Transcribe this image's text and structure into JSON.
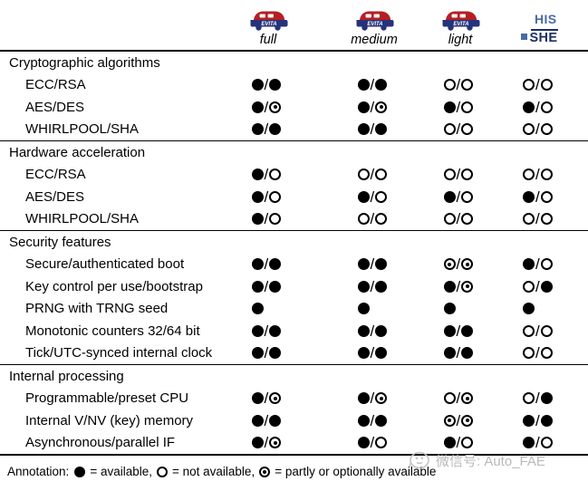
{
  "header": {
    "evita_logo_text": "EVITA",
    "columns": [
      {
        "id": "evita-full",
        "type": "evita",
        "label": "full"
      },
      {
        "id": "evita-medium",
        "type": "evita",
        "label": "medium"
      },
      {
        "id": "evita-light",
        "type": "evita",
        "label": "light"
      },
      {
        "id": "his-she",
        "type": "she",
        "logo_top": "HIS",
        "logo_bottom": "SHE"
      }
    ]
  },
  "symbols": {
    "F": "available",
    "O": "not available",
    "P": "partly or optionally available"
  },
  "sections": [
    {
      "title": "Cryptographic algorithms",
      "rows": [
        {
          "label": "ECC/RSA",
          "cells": [
            "F/F",
            "F/F",
            "O/O",
            "O/O"
          ]
        },
        {
          "label": "AES/DES",
          "cells": [
            "F/P",
            "F/P",
            "F/O",
            "F/O"
          ]
        },
        {
          "label": "WHIRLPOOL/SHA",
          "cells": [
            "F/F",
            "F/F",
            "O/O",
            "O/O"
          ]
        }
      ]
    },
    {
      "title": "Hardware acceleration",
      "rows": [
        {
          "label": "ECC/RSA",
          "cells": [
            "F/O",
            "O/O",
            "O/O",
            "O/O"
          ]
        },
        {
          "label": "AES/DES",
          "cells": [
            "F/O",
            "F/O",
            "F/O",
            "F/O"
          ]
        },
        {
          "label": "WHIRLPOOL/SHA",
          "cells": [
            "F/O",
            "O/O",
            "O/O",
            "O/O"
          ]
        }
      ]
    },
    {
      "title": "Security features",
      "rows": [
        {
          "label": "Secure/authenticated boot",
          "cells": [
            "F/F",
            "F/F",
            "P/P",
            "F/O"
          ]
        },
        {
          "label": "Key control per use/bootstrap",
          "cells": [
            "F/F",
            "F/F",
            "F/P",
            "O/F"
          ]
        },
        {
          "label": "PRNG with TRNG seed",
          "cells": [
            "F",
            "F",
            "F",
            "F"
          ]
        },
        {
          "label": "Monotonic counters 32/64 bit",
          "cells": [
            "F/F",
            "F/F",
            "F/F",
            "O/O"
          ]
        },
        {
          "label": "Tick/UTC-synced internal clock",
          "cells": [
            "F/F",
            "F/F",
            "F/F",
            "O/O"
          ]
        }
      ]
    },
    {
      "title": "Internal processing",
      "rows": [
        {
          "label": "Programmable/preset CPU",
          "cells": [
            "F/P",
            "F/P",
            "O/P",
            "O/F"
          ]
        },
        {
          "label": "Internal V/NV (key) memory",
          "cells": [
            "F/F",
            "F/F",
            "P/P",
            "F/F"
          ]
        },
        {
          "label": "Asynchronous/parallel IF",
          "cells": [
            "F/P",
            "F/O",
            "F/O",
            "F/O"
          ]
        }
      ]
    }
  ],
  "annotation": {
    "prefix": "Annotation:",
    "legend": [
      {
        "symbol": "F",
        "text": "= available,"
      },
      {
        "symbol": "O",
        "text": "= not available,"
      },
      {
        "symbol": "P",
        "text": "= partly or optionally available"
      }
    ]
  },
  "watermark": {
    "text": "微信号: Auto_FAE"
  },
  "colors": {
    "evita_red": "#b41f24",
    "evita_navy": "#26337b",
    "his_blue": "#4a69a8",
    "she_navy": "#1b2f63",
    "watermark_gray": "#b9b9b9",
    "line_black": "#000000"
  }
}
